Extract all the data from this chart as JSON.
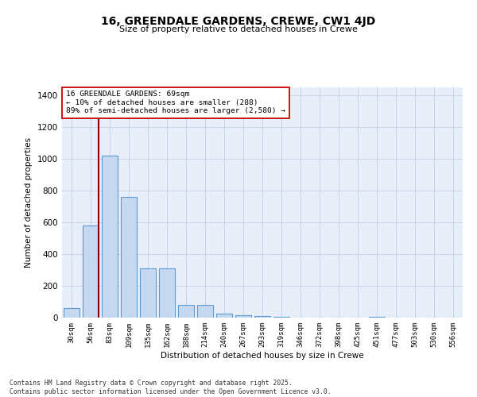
{
  "title": "16, GREENDALE GARDENS, CREWE, CW1 4JD",
  "subtitle": "Size of property relative to detached houses in Crewe",
  "xlabel": "Distribution of detached houses by size in Crewe",
  "ylabel": "Number of detached properties",
  "categories": [
    "30sqm",
    "56sqm",
    "83sqm",
    "109sqm",
    "135sqm",
    "162sqm",
    "188sqm",
    "214sqm",
    "240sqm",
    "267sqm",
    "293sqm",
    "319sqm",
    "346sqm",
    "372sqm",
    "398sqm",
    "425sqm",
    "451sqm",
    "477sqm",
    "503sqm",
    "530sqm",
    "556sqm"
  ],
  "bar_values": [
    60,
    580,
    1020,
    760,
    310,
    310,
    80,
    80,
    25,
    15,
    10,
    5,
    0,
    0,
    0,
    0,
    5,
    0,
    0,
    0,
    0
  ],
  "bar_color": "#c5d8ef",
  "bar_edge_color": "#5b9bd5",
  "grid_color": "#c8d4e8",
  "background_color": "#e8eef8",
  "vline_color": "#8b0000",
  "annotation_text": "16 GREENDALE GARDENS: 69sqm\n← 10% of detached houses are smaller (288)\n89% of semi-detached houses are larger (2,580) →",
  "annotation_box_color": "#ffffff",
  "annotation_box_edge": "#cc0000",
  "ylim": [
    0,
    1450
  ],
  "yticks": [
    0,
    200,
    400,
    600,
    800,
    1000,
    1200,
    1400
  ],
  "footer_line1": "Contains HM Land Registry data © Crown copyright and database right 2025.",
  "footer_line2": "Contains public sector information licensed under the Open Government Licence v3.0."
}
